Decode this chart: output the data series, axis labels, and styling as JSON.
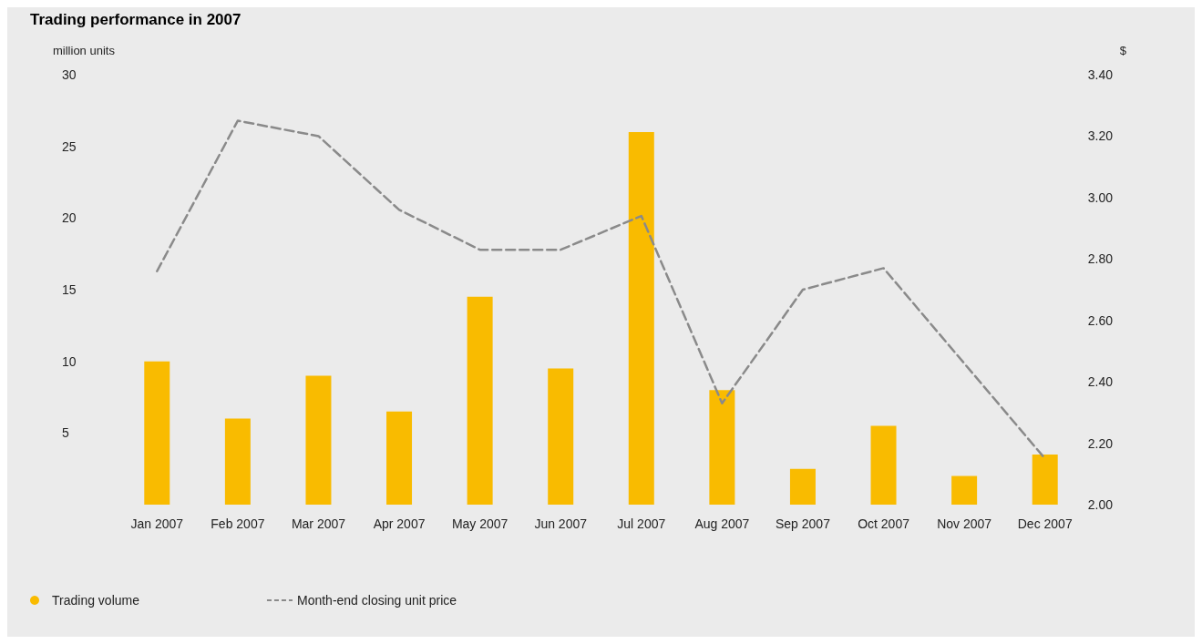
{
  "chart_data": {
    "type": "bar",
    "title": "Trading performance in 2007",
    "ylabel": "million units",
    "y2label": "$",
    "categories": [
      "Jan 2007",
      "Feb 2007",
      "Mar 2007",
      "Apr 2007",
      "May 2007",
      "Jun 2007",
      "Jul 2007",
      "Aug 2007",
      "Sep 2007",
      "Oct 2007",
      "Nov 2007",
      "Dec 2007"
    ],
    "series": [
      {
        "name": "Trading volume",
        "color": "#f9bb00",
        "values": [
          10,
          6,
          9,
          6.5,
          14.5,
          9.5,
          26,
          8,
          2.5,
          5.5,
          2,
          3.5
        ]
      },
      {
        "name": "Month-end closing unit price",
        "type": "line",
        "axis": "y2",
        "color": "#8a8a8a",
        "line_style": "dashed",
        "marker": "none",
        "values": [
          2.76,
          3.25,
          3.2,
          2.96,
          2.83,
          2.83,
          2.94,
          2.33,
          2.7,
          2.77,
          2.46,
          2.15
        ]
      }
    ],
    "ylim": [
      0,
      30
    ],
    "yticks": [
      5,
      10,
      15,
      20,
      25,
      30
    ],
    "y2lim": [
      2,
      3.4
    ],
    "y2ticks": [
      {
        "value": 2,
        "label": "2.00"
      },
      {
        "value": 2.2,
        "label": "2.20"
      },
      {
        "value": 2.4,
        "label": "2.40"
      },
      {
        "value": 2.6,
        "label": "2.60"
      },
      {
        "value": 2.8,
        "label": "2.80"
      },
      {
        "value": 3,
        "label": "3.00"
      },
      {
        "value": 3.2,
        "label": "3.20"
      },
      {
        "value": 3.4,
        "label": "3.40"
      }
    ],
    "grid": false,
    "legend": "bottom left"
  }
}
